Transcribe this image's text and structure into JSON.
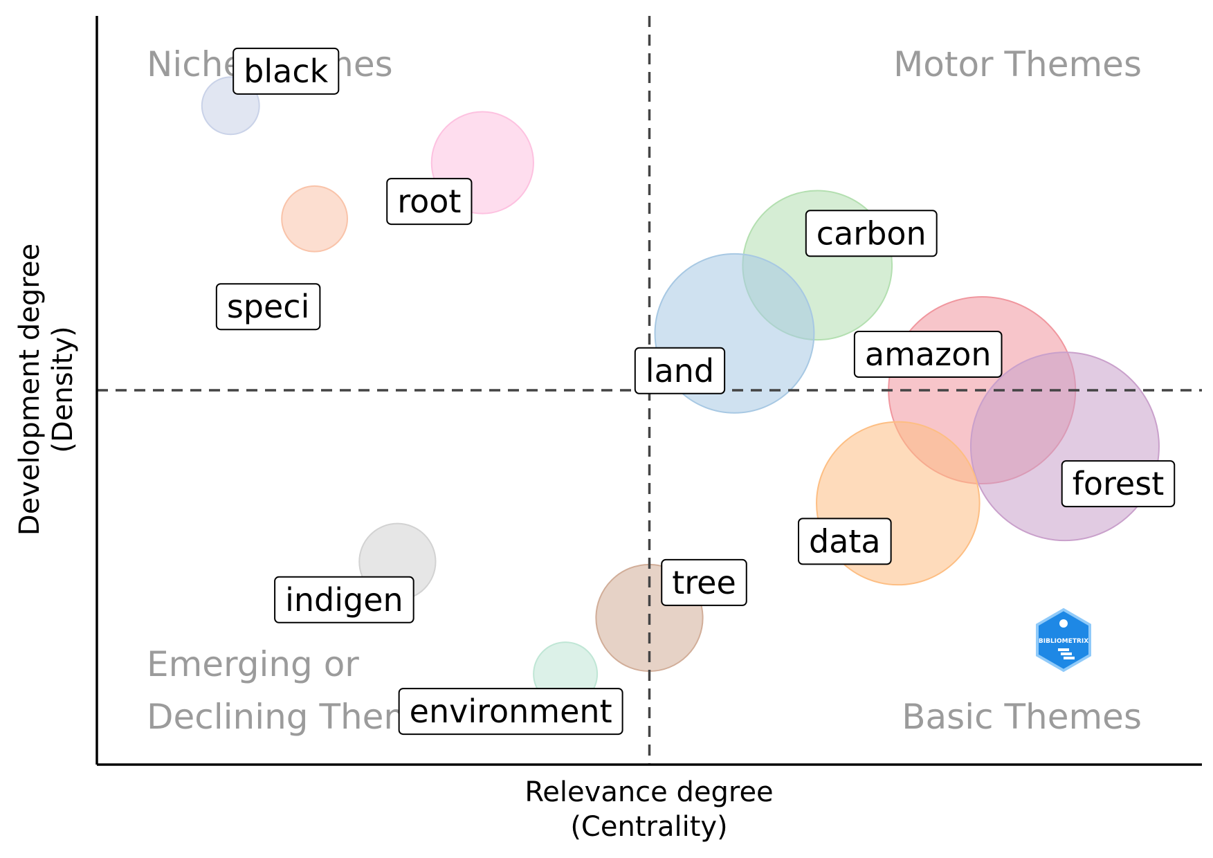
{
  "chart_data": {
    "type": "scatter",
    "xlabel": [
      "Relevance degree",
      "(Centrality)"
    ],
    "ylabel": [
      "Development degree",
      "(Density)"
    ],
    "xlim": [
      0,
      1
    ],
    "ylim": [
      0,
      1
    ],
    "divider_x": 0.5,
    "divider_y": 0.5,
    "grid": false,
    "quadrant_labels": {
      "top_left": "Niche Themes",
      "top_right": "Motor Themes",
      "bottom_left_line1": "Emerging or",
      "bottom_left_line2": "Declining Themes",
      "bottom_right": "Basic Themes"
    },
    "clusters": [
      {
        "label": "black",
        "x": 0.121,
        "y": 0.88,
        "size": 0.13,
        "color": "#c9d2e8"
      },
      {
        "label": "speci",
        "x": 0.197,
        "y": 0.729,
        "size": 0.17,
        "color": "#f9c3a9"
      },
      {
        "label": "root",
        "x": 0.349,
        "y": 0.804,
        "size": 0.41,
        "color": "#fdc1e0"
      },
      {
        "label": "carbon",
        "x": 0.652,
        "y": 0.667,
        "size": 0.88,
        "color": "#b3dfb0"
      },
      {
        "label": "land",
        "x": 0.577,
        "y": 0.576,
        "size": 1.0,
        "color": "#a7c8e3"
      },
      {
        "label": "amazon",
        "x": 0.801,
        "y": 0.5,
        "size": 1.38,
        "color": "#f0969e"
      },
      {
        "label": "forest",
        "x": 0.876,
        "y": 0.425,
        "size": 1.4,
        "color": "#c9a0cb"
      },
      {
        "label": "data",
        "x": 0.725,
        "y": 0.349,
        "size": 1.05,
        "color": "#fdbe83"
      },
      {
        "label": "indigen",
        "x": 0.272,
        "y": 0.271,
        "size": 0.23,
        "color": "#d2d2d2"
      },
      {
        "label": "tree",
        "x": 0.5,
        "y": 0.196,
        "size": 0.45,
        "color": "#d1ad98"
      },
      {
        "label": "environment",
        "x": 0.424,
        "y": 0.121,
        "size": 0.16,
        "color": "#bfe6d5"
      }
    ]
  },
  "logo": {
    "text": "BIBLIOMETRIX",
    "color": "#1e88e5"
  }
}
